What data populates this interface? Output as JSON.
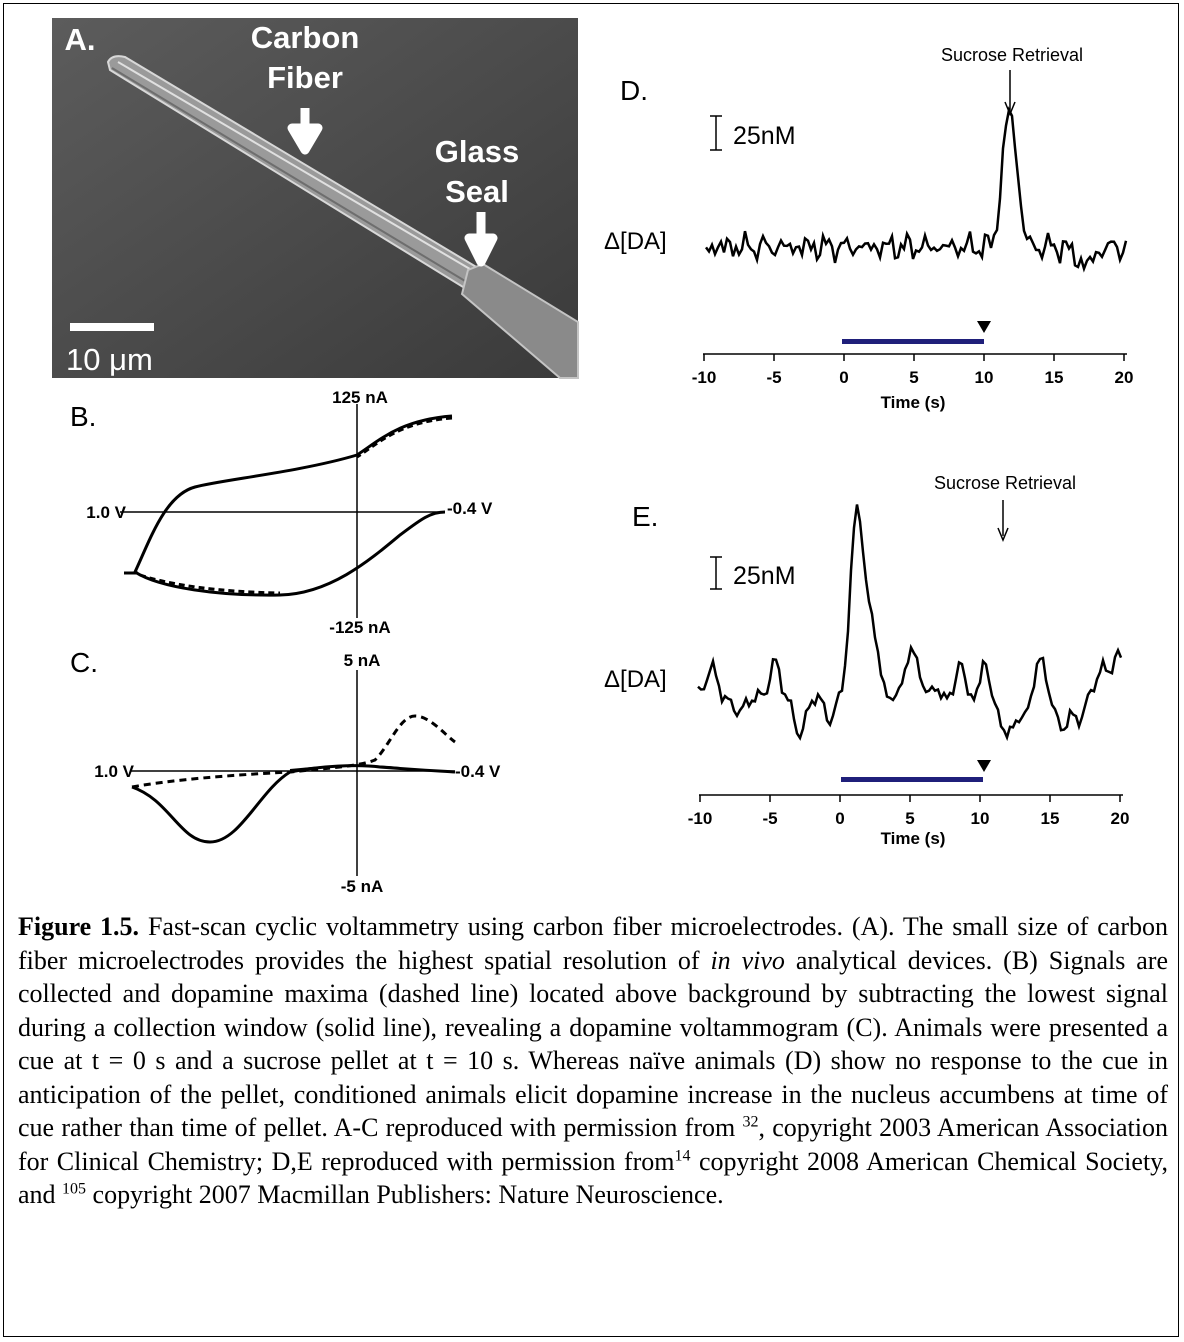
{
  "panels": {
    "a": {
      "label": "A.",
      "annotations": [
        "Carbon",
        "Fiber",
        "Glass",
        "Seal"
      ],
      "scale_bar": "10 μm"
    },
    "b": {
      "label": "B.",
      "y_top": "125 nA",
      "y_bottom": "-125 nA",
      "x_left": "1.0 V",
      "x_right": "-0.4 V"
    },
    "c": {
      "label": "C.",
      "y_top": "5 nA",
      "y_bottom": "-5 nA",
      "x_left": "1.0 V",
      "x_right": "-0.4 V"
    },
    "d": {
      "label": "D.",
      "event": "Sucrose Retrieval",
      "scale": "25nM",
      "y_label": "Δ[DA]",
      "x_label": "Time (s)",
      "xticks": [
        -10,
        -5,
        0,
        5,
        10,
        15,
        20
      ]
    },
    "e": {
      "label": "E.",
      "event": "Sucrose Retrieval",
      "scale": "25nM",
      "y_label": "Δ[DA]",
      "x_label": "Time (s)",
      "xticks": [
        -10,
        -5,
        0,
        5,
        10,
        15,
        20
      ]
    }
  },
  "caption": [
    {
      "text": "Figure 1.5.",
      "style": "bold"
    },
    {
      "text": " Fast-scan cyclic voltammetry using carbon fiber microelectrodes.  (A). The small size of carbon fiber microelectrodes provides the highest spatial resolution of ",
      "style": "normal"
    },
    {
      "text": "in vivo",
      "style": "italic"
    },
    {
      "text": " analytical devices.  (B) Signals are collected and dopamine maxima (dashed line) located above background by subtracting the lowest signal during a collection window (solid line), revealing a dopamine voltammogram (C).  Animals were presented a cue at t = 0 s and a sucrose pellet at t = 10 s.  Whereas naïve animals (D) show no response to the cue in anticipation of the pellet, conditioned animals elicit dopamine increase in the nucleus accumbens at time of cue rather than time of pellet. A-C reproduced with permission from ",
      "style": "normal"
    },
    {
      "text": "32",
      "style": "sup"
    },
    {
      "text": ", copyright 2003 American Association for Clinical Chemistry; D,E reproduced with permission from",
      "style": "normal"
    },
    {
      "text": "14",
      "style": "sup"
    },
    {
      "text": " copyright 2008 American Chemical Society, and ",
      "style": "normal"
    },
    {
      "text": "105",
      "style": "sup"
    },
    {
      "text": " copyright 2007 Macmillan Publishers: Nature Neuroscience.",
      "style": "normal"
    }
  ]
}
